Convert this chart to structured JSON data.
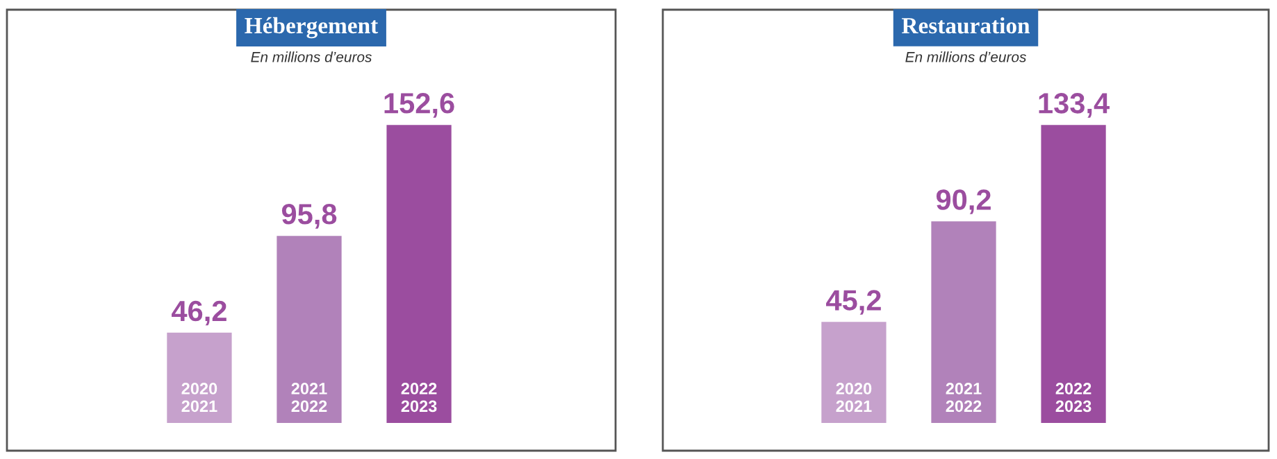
{
  "chart_data": [
    {
      "type": "bar",
      "title": "Hébergement",
      "subtitle": "En millions d’euros",
      "categories": [
        "2020\n2021",
        "2021\n2022",
        "2022\n2023"
      ],
      "values": [
        46.2,
        95.8,
        152.6
      ],
      "value_labels": [
        "46,2",
        "95,8",
        "152,6"
      ],
      "colors": [
        "#c6a1cc",
        "#b182ba",
        "#9b4d9f"
      ]
    },
    {
      "type": "bar",
      "title": "Restauration",
      "subtitle": "En millions d’euros",
      "categories": [
        "2020\n2021",
        "2021\n2022",
        "2022\n2023"
      ],
      "values": [
        45.2,
        90.2,
        133.4
      ],
      "value_labels": [
        "45,2",
        "90,2",
        "133,4"
      ],
      "colors": [
        "#c6a1cc",
        "#b182ba",
        "#9b4d9f"
      ]
    }
  ]
}
